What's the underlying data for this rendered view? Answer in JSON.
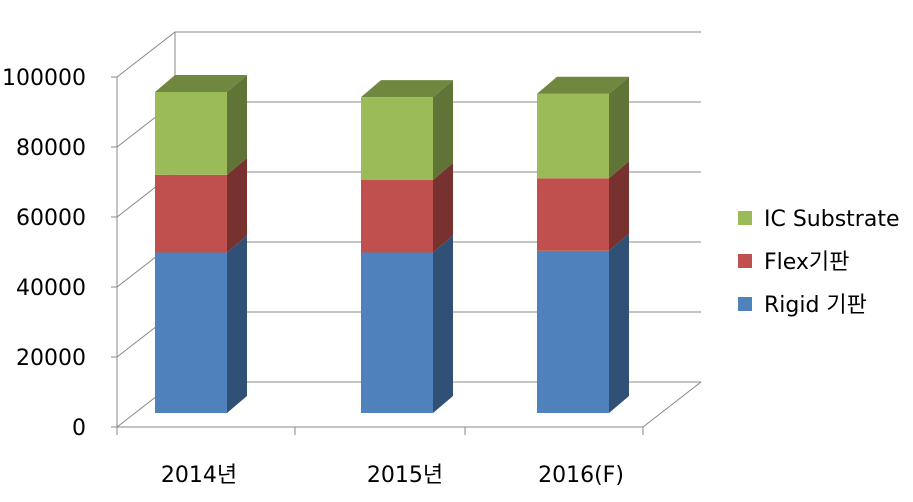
{
  "chart_data": {
    "type": "bar",
    "stacked": true,
    "three_d": true,
    "categories": [
      "2014년",
      "2015년",
      "2016(F)"
    ],
    "series": [
      {
        "name": "Rigid 기판",
        "values": [
          46500,
          46500,
          47000
        ],
        "color": "#4f81bd"
      },
      {
        "name": "Flex기판",
        "values": [
          22500,
          21000,
          21000
        ],
        "color": "#c0504d"
      },
      {
        "name": "IC Substrate",
        "values": [
          24000,
          24000,
          24500
        ],
        "color": "#9bbb59"
      }
    ],
    "ylim": [
      0,
      100000
    ],
    "yticks": [
      "0",
      "20000",
      "40000",
      "60000",
      "80000",
      "100000"
    ],
    "grid": true,
    "legend": "right"
  }
}
